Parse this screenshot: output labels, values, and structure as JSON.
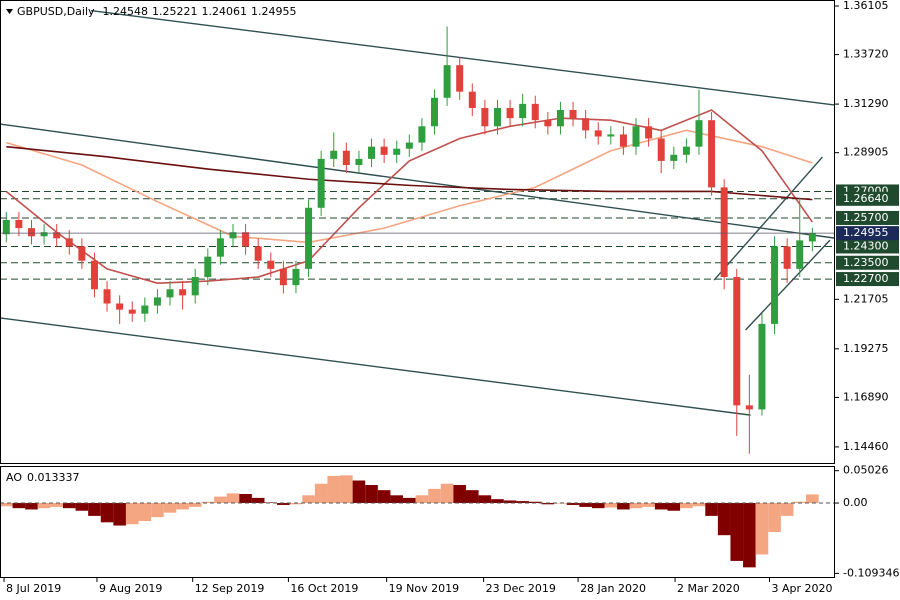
{
  "chart_data": [
    {
      "type": "candlestick",
      "title": "GBPUSD,Daily",
      "title_ohlc": [
        1.24548,
        1.25221,
        1.24061,
        1.24955
      ],
      "xlim": [
        -0.5,
        65.8
      ],
      "ylim": [
        1.1367,
        1.364
      ],
      "yticks": [
        1.36105,
        {
          "value": 1.3372,
          "label": "1.33720"
        },
        {
          "value": 1.3129,
          "label": "1.31290"
        },
        1.28905,
        1.21705,
        1.19275,
        {
          "value": 1.1689,
          "label": "1.16890"
        },
        {
          "value": 1.1446,
          "label": "1.14460"
        }
      ],
      "up_color": "#2e9e3e",
      "down_color": "#e0413a",
      "open": [
        1.249,
        1.256,
        1.252,
        1.248,
        1.25,
        1.247,
        1.243,
        1.236,
        1.222,
        1.215,
        1.212,
        1.21,
        1.214,
        1.218,
        1.222,
        1.219,
        1.228,
        1.238,
        1.247,
        1.25,
        1.243,
        1.236,
        1.232,
        1.224,
        1.232,
        1.262,
        1.286,
        1.29,
        1.283,
        1.286,
        1.292,
        1.288,
        1.291,
        1.294,
        1.302,
        1.316,
        1.332,
        1.319,
        1.311,
        1.302,
        1.311,
        1.306,
        1.313,
        1.305,
        1.302,
        1.31,
        1.306,
        1.3,
        1.297,
        1.298,
        1.292,
        1.302,
        1.296,
        1.285,
        1.288,
        1.292,
        1.305,
        1.272,
        1.228,
        1.165,
        1.163,
        1.205,
        1.243,
        1.232,
        1.24548
      ],
      "high": [
        1.26,
        1.26,
        1.256,
        1.254,
        1.254,
        1.251,
        1.247,
        1.24,
        1.226,
        1.219,
        1.216,
        1.218,
        1.222,
        1.226,
        1.226,
        1.232,
        1.242,
        1.251,
        1.254,
        1.254,
        1.247,
        1.24,
        1.236,
        1.236,
        1.266,
        1.29,
        1.299,
        1.294,
        1.29,
        1.296,
        1.296,
        1.295,
        1.298,
        1.306,
        1.32,
        1.351,
        1.336,
        1.323,
        1.315,
        1.315,
        1.315,
        1.318,
        1.317,
        1.309,
        1.314,
        1.314,
        1.31,
        1.304,
        1.302,
        1.302,
        1.306,
        1.306,
        1.3,
        1.292,
        1.296,
        1.32,
        1.309,
        1.276,
        1.232,
        1.18,
        1.21,
        1.248,
        1.247,
        1.267,
        1.25221
      ],
      "low": [
        1.245,
        1.248,
        1.244,
        1.244,
        1.243,
        1.239,
        1.232,
        1.218,
        1.211,
        1.205,
        1.206,
        1.206,
        1.21,
        1.214,
        1.212,
        1.215,
        1.224,
        1.234,
        1.243,
        1.239,
        1.232,
        1.228,
        1.22,
        1.22,
        1.228,
        1.258,
        1.282,
        1.279,
        1.279,
        1.282,
        1.284,
        1.284,
        1.287,
        1.29,
        1.298,
        1.312,
        1.315,
        1.307,
        1.298,
        1.298,
        1.302,
        1.302,
        1.301,
        1.298,
        1.298,
        1.302,
        1.296,
        1.293,
        1.293,
        1.288,
        1.288,
        1.292,
        1.279,
        1.281,
        1.284,
        1.288,
        1.268,
        1.222,
        1.15,
        1.1412,
        1.16,
        1.2,
        1.225,
        1.228,
        1.24061
      ],
      "close": [
        1.256,
        1.252,
        1.248,
        1.25,
        1.247,
        1.243,
        1.236,
        1.222,
        1.215,
        1.212,
        1.21,
        1.214,
        1.218,
        1.222,
        1.219,
        1.228,
        1.238,
        1.247,
        1.25,
        1.243,
        1.236,
        1.232,
        1.224,
        1.232,
        1.262,
        1.286,
        1.29,
        1.283,
        1.286,
        1.292,
        1.288,
        1.291,
        1.294,
        1.302,
        1.316,
        1.332,
        1.319,
        1.311,
        1.302,
        1.311,
        1.306,
        1.313,
        1.305,
        1.302,
        1.31,
        1.306,
        1.3,
        1.297,
        1.298,
        1.292,
        1.302,
        1.296,
        1.285,
        1.288,
        1.292,
        1.305,
        1.272,
        1.228,
        1.165,
        1.163,
        1.205,
        1.243,
        1.232,
        1.246,
        1.24955
      ],
      "moving_averages": [
        {
          "color": "#f4a582",
          "x": [
            0,
            6,
            12,
            18,
            24,
            30,
            36,
            42,
            48,
            54,
            60,
            64
          ],
          "values": [
            1.294,
            1.283,
            1.265,
            1.248,
            1.245,
            1.252,
            1.263,
            1.272,
            1.29,
            1.3,
            1.292,
            1.284
          ]
        },
        {
          "color": "#c0504d",
          "x": [
            0,
            4,
            8,
            12,
            16,
            20,
            24,
            28,
            32,
            36,
            40,
            44,
            48,
            52,
            56,
            60,
            64
          ],
          "values": [
            1.27,
            1.25,
            1.232,
            1.225,
            1.226,
            1.228,
            1.236,
            1.262,
            1.285,
            1.296,
            1.302,
            1.306,
            1.305,
            1.3,
            1.31,
            1.29,
            1.255
          ]
        },
        {
          "color": "#6b0f0f",
          "x": [
            0,
            8,
            16,
            24,
            32,
            40,
            48,
            56,
            64
          ],
          "values": [
            1.292,
            1.287,
            1.281,
            1.276,
            1.273,
            1.271,
            1.27,
            1.27,
            1.266
          ]
        }
      ],
      "trendlines": [
        {
          "color": "#2f4f4f",
          "x": [
            3.9,
            65.8
          ],
          "values": [
            1.361,
            1.3124
          ]
        },
        {
          "color": "#2f4f4f",
          "x": [
            -0.5,
            65.8
          ],
          "values": [
            1.3031,
            1.2471
          ]
        },
        {
          "color": "#2f4f4f",
          "x": [
            -0.5,
            59.1
          ],
          "values": [
            1.2079,
            1.1602
          ]
        },
        {
          "color": "#2f4f4f",
          "x": [
            58.7,
            65.4
          ],
          "values": [
            1.202,
            1.2461
          ]
        },
        {
          "color": "#2f4f4f",
          "x": [
            56.2,
            64.8
          ],
          "values": [
            1.2265,
            1.2869
          ]
        }
      ],
      "level_color": "#1f4a2e",
      "levels": [
        {
          "value": 1.27,
          "label": "1.27000"
        },
        {
          "value": 1.2664,
          "label": "1.26640"
        },
        {
          "value": 1.257,
          "label": "1.25700"
        },
        {
          "value": 1.243,
          "label": "1.24300"
        },
        {
          "value": 1.235,
          "label": "1.23500"
        },
        {
          "value": 1.227,
          "label": "1.22700"
        }
      ],
      "last_price": 1.24955,
      "last_price_color": "#1c2a5a"
    },
    {
      "type": "bar",
      "title": "AO",
      "title_value": 0.013337,
      "xlim": [
        -0.5,
        65.8
      ],
      "ylim": [
        -0.115,
        0.056
      ],
      "yticks": [
        0.05026,
        {
          "value": 0,
          "label": "0.00"
        },
        -0.109346
      ],
      "up_color": "#f4a582",
      "down_color": "#800000",
      "values": [
        -0.005,
        -0.008,
        -0.01,
        -0.008,
        -0.006,
        -0.008,
        -0.012,
        -0.02,
        -0.03,
        -0.035,
        -0.033,
        -0.028,
        -0.022,
        -0.015,
        -0.01,
        -0.006,
        0.002,
        0.01,
        0.015,
        0.014,
        0.008,
        0.001,
        -0.003,
        -0.002,
        0.012,
        0.03,
        0.042,
        0.043,
        0.035,
        0.028,
        0.02,
        0.012,
        0.008,
        0.012,
        0.022,
        0.03,
        0.028,
        0.02,
        0.012,
        0.006,
        0.004,
        0.003,
        0.002,
        -0.002,
        -0.001,
        -0.003,
        -0.006,
        -0.008,
        -0.007,
        -0.01,
        -0.008,
        -0.006,
        -0.01,
        -0.012,
        -0.008,
        -0.005,
        -0.02,
        -0.05,
        -0.09,
        -0.1,
        -0.08,
        -0.045,
        -0.02,
        0.002,
        0.013337
      ],
      "xticks": [
        {
          "value": -0.18,
          "label": "8 Jul 2019"
        },
        {
          "value": 7.2,
          "label": "9 Aug 2019"
        },
        {
          "value": 14.8,
          "label": "12 Sep 2019"
        },
        {
          "value": 22.4,
          "label": "16 Oct 2019"
        },
        {
          "value": 30.2,
          "label": "19 Nov 2019"
        },
        {
          "value": 37.9,
          "label": "23 Dec 2019"
        },
        {
          "value": 45.4,
          "label": "28 Jan 2020"
        },
        {
          "value": 53.1,
          "label": "2 Mar 2020"
        },
        {
          "value": 60.6,
          "label": "3 Apr 2020"
        }
      ]
    }
  ]
}
